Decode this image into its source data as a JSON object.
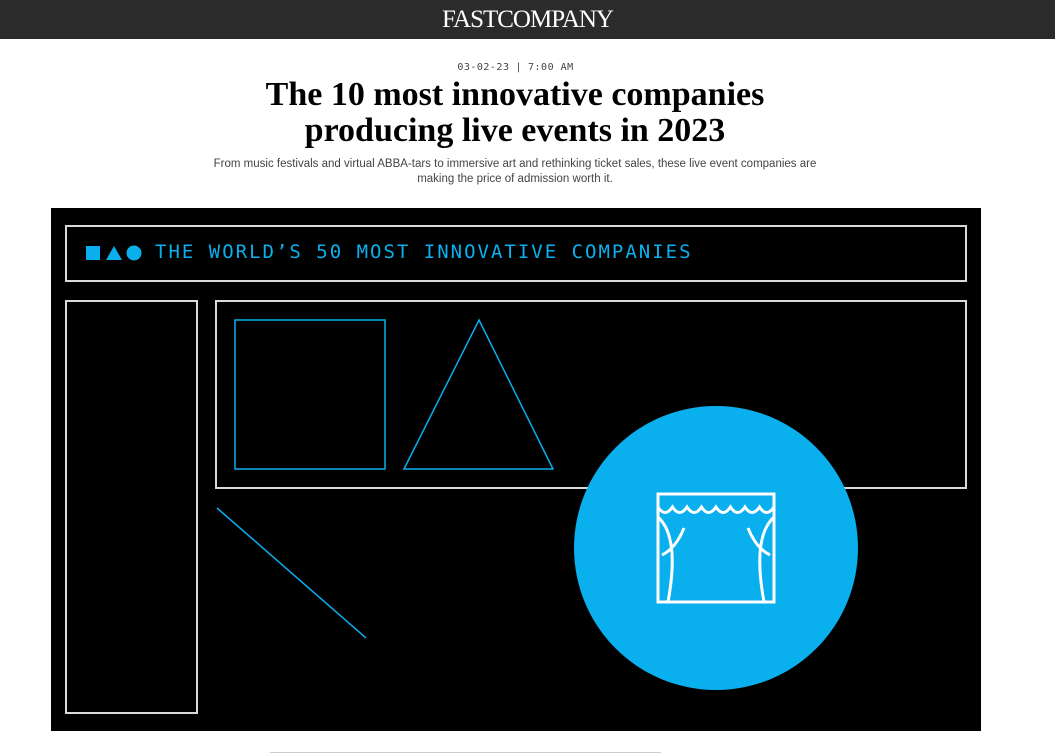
{
  "header": {
    "logo_text": "FastCompany",
    "logo_icon": "fast-company-wordmark"
  },
  "article": {
    "date": "03-02-23",
    "separator": "|",
    "time": "7:00 AM",
    "title": "The 10 most innovative companies producing live events in 2023",
    "dek": "From music festivals and virtual ABBA-tars to immersive art and rethinking ticket sales, these live event companies are making the price of admission worth it."
  },
  "hero": {
    "banner_text": "THE WORLD’S 50 MOST INNOVATIVE COMPANIES",
    "accent_color": "#0ab0ee",
    "background_color": "#000000",
    "line_color": "#d9d9d9",
    "shapes": [
      "square-icon",
      "triangle-icon",
      "circle-icon"
    ],
    "badge_icon": "theater-curtain-icon"
  }
}
